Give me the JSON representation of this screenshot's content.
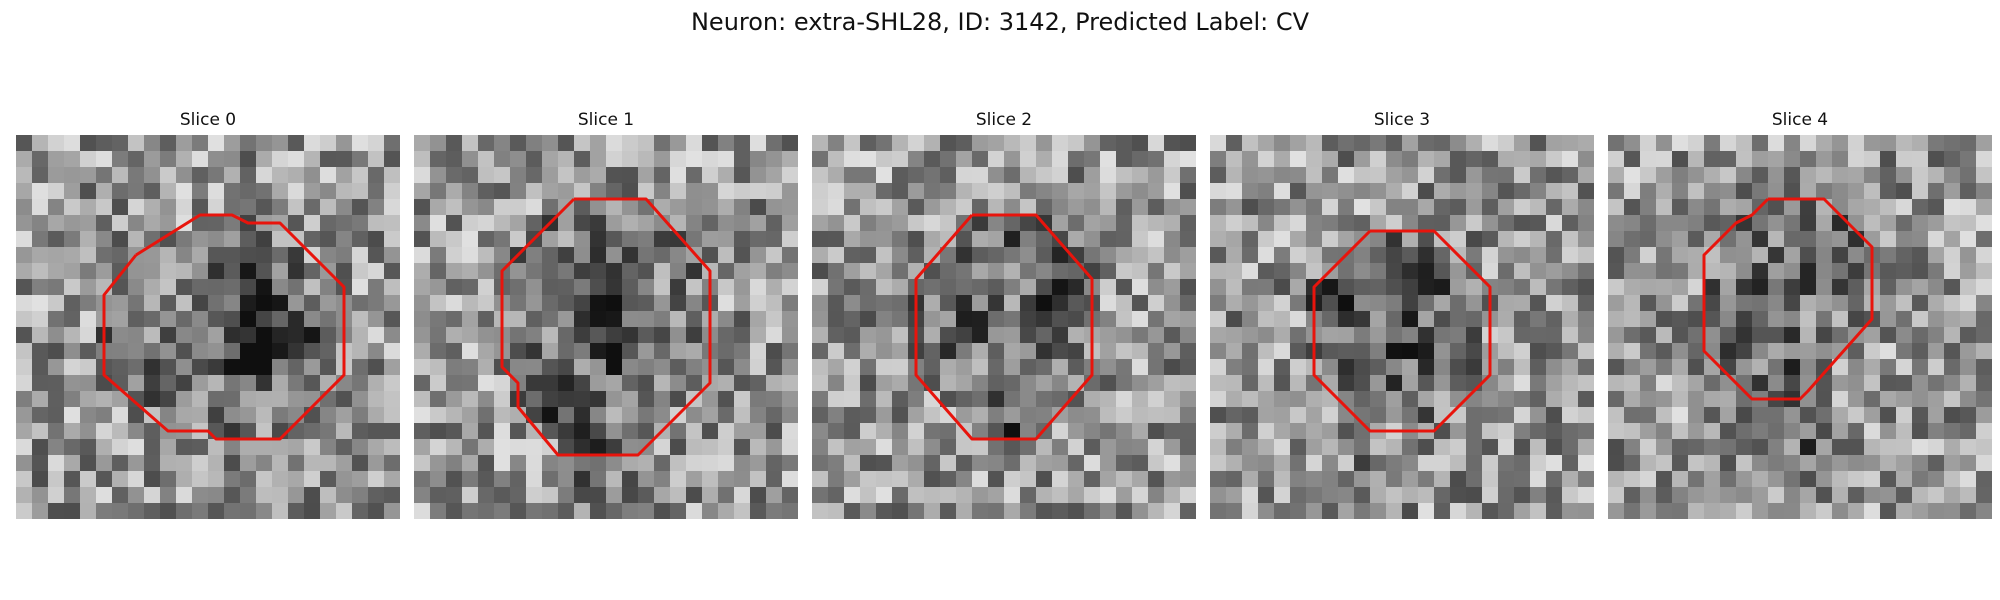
{
  "figure": {
    "title": "Neuron: extra-SHL28, ID: 3142, Predicted Label: CV"
  },
  "slices": [
    {
      "title": "Slice 0",
      "contour": [
        [
          5.5,
          3.5
        ],
        [
          9.5,
          1.0
        ],
        [
          11.5,
          1.0
        ],
        [
          12.5,
          1.5
        ],
        [
          14.5,
          1.5
        ],
        [
          18.5,
          5.5
        ],
        [
          18.5,
          11.0
        ],
        [
          14.5,
          15.0
        ],
        [
          10.5,
          15.0
        ],
        [
          10.0,
          14.5
        ],
        [
          7.5,
          14.5
        ],
        [
          3.5,
          11.0
        ],
        [
          3.5,
          6.0
        ],
        [
          5.5,
          3.5
        ]
      ],
      "dark": [
        [
          18,
          13.5
        ],
        [
          15,
          10
        ],
        [
          15,
          14
        ],
        [
          16,
          12
        ],
        [
          14,
          13
        ]
      ]
    },
    {
      "title": "Slice 1",
      "contour": [
        [
          8.0,
          0.0
        ],
        [
          12.5,
          0.0
        ],
        [
          16.5,
          4.5
        ],
        [
          16.5,
          11.5
        ],
        [
          12.0,
          16.0
        ],
        [
          7.0,
          16.0
        ],
        [
          4.5,
          13.0
        ],
        [
          4.5,
          11.5
        ],
        [
          3.5,
          10.5
        ],
        [
          3.5,
          4.5
        ],
        [
          8.0,
          0.0
        ]
      ],
      "dark": [
        [
          9,
          16
        ],
        [
          13,
          14
        ],
        [
          10,
          18
        ],
        [
          12,
          10
        ],
        [
          11,
          22
        ]
      ]
    },
    {
      "title": "Slice 2",
      "contour": [
        [
          8.0,
          1.0
        ],
        [
          12.0,
          1.0
        ],
        [
          15.5,
          5.0
        ],
        [
          15.5,
          11.0
        ],
        [
          12.0,
          15.0
        ],
        [
          8.0,
          15.0
        ],
        [
          4.5,
          11.0
        ],
        [
          4.5,
          5.0
        ],
        [
          8.0,
          1.0
        ]
      ],
      "dark": [
        [
          14,
          6
        ],
        [
          12,
          19
        ],
        [
          10,
          12
        ],
        [
          16,
          9
        ],
        [
          15,
          11
        ]
      ]
    },
    {
      "title": "Slice 3",
      "contour": [
        [
          8.0,
          2.0
        ],
        [
          12.0,
          2.0
        ],
        [
          15.5,
          5.5
        ],
        [
          15.5,
          11.0
        ],
        [
          12.0,
          14.5
        ],
        [
          8.0,
          14.5
        ],
        [
          4.5,
          11.0
        ],
        [
          4.5,
          5.5
        ],
        [
          8.0,
          2.0
        ]
      ],
      "dark": [
        [
          8,
          10
        ],
        [
          14,
          8
        ],
        [
          11,
          21
        ],
        [
          12,
          13
        ],
        [
          9,
          16
        ]
      ]
    },
    {
      "title": "Slice 4",
      "contour": [
        [
          8.0,
          0.0
        ],
        [
          11.5,
          0.0
        ],
        [
          14.5,
          3.0
        ],
        [
          14.5,
          7.5
        ],
        [
          10.5,
          12.0
        ],
        [
          10.0,
          12.5
        ],
        [
          7.0,
          12.5
        ],
        [
          4.0,
          9.5
        ],
        [
          4.0,
          3.5
        ],
        [
          6.0,
          1.5
        ],
        [
          7.0,
          1.0
        ],
        [
          8.0,
          0.0
        ]
      ],
      "dark": [
        [
          10,
          17
        ],
        [
          14,
          8
        ],
        [
          12,
          15
        ],
        [
          13,
          19
        ],
        [
          9,
          11
        ]
      ]
    }
  ]
}
